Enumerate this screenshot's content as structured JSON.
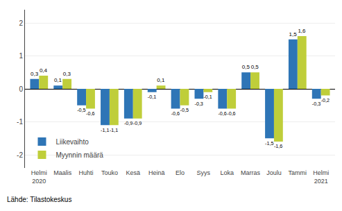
{
  "chart_data": {
    "type": "bar",
    "categories": [
      "Helmi\n2020",
      "Maalis",
      "Huhti",
      "Touko",
      "Kesä",
      "Heinä",
      "Elo",
      "Syys",
      "Loka",
      "Marras",
      "Joulu",
      "Tammi",
      "Helmi\n2021"
    ],
    "series": [
      {
        "name": "Liikevaihto",
        "color": "#2E75B6",
        "values": [
          0.3,
          0.1,
          -0.5,
          -1.1,
          -0.9,
          -0.1,
          -0.6,
          -0.3,
          -0.6,
          0.5,
          -1.5,
          1.5,
          -0.3
        ],
        "value_labels": [
          "0,3",
          "0,1",
          "-0,5",
          "-1,1",
          "-0,9",
          "-0,1",
          "-0,6",
          "-0,3",
          "-0,6",
          "0,5",
          "-1,5",
          "1,5",
          "-0,3"
        ]
      },
      {
        "name": "Myynnin määrä",
        "color": "#BFCE3A",
        "values": [
          0.4,
          0.3,
          -0.6,
          -1.1,
          -0.9,
          0.1,
          -0.5,
          -0.1,
          -0.6,
          0.5,
          -1.6,
          1.6,
          -0.2
        ],
        "value_labels": [
          "0,4",
          "0,3",
          "-0,6",
          "-1,1",
          "-0,9",
          "0,1",
          "-0,5",
          "-0,1",
          "-0,6",
          "0,5",
          "-1,6",
          "1,6",
          "-0,2"
        ]
      }
    ],
    "ylim": [
      -2.4,
      2.4
    ],
    "yticks": [
      -2,
      -1,
      0,
      1,
      2
    ],
    "grid": true,
    "legend": "lower left",
    "data_labels": true,
    "annotations": [
      "Lähde: Tilastokeskus"
    ]
  }
}
